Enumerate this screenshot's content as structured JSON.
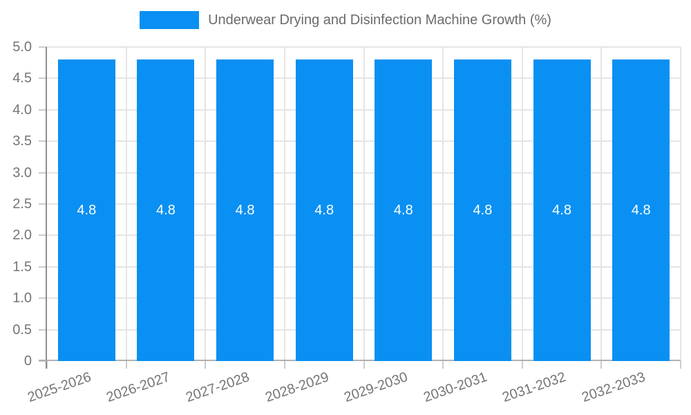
{
  "chart_data": {
    "type": "bar",
    "title": "Underwear Drying and Disinfection Machine Growth (%)",
    "categories": [
      "2025-2026",
      "2026-2027",
      "2027-2028",
      "2028-2029",
      "2029-2030",
      "2030-2031",
      "2031-2032",
      "2032-2033"
    ],
    "values": [
      4.8,
      4.8,
      4.8,
      4.8,
      4.8,
      4.8,
      4.8,
      4.8
    ],
    "value_labels": [
      "4.8",
      "4.8",
      "4.8",
      "4.8",
      "4.8",
      "4.8",
      "4.8",
      "4.8"
    ],
    "xlabel": "",
    "ylabel": "",
    "ylim": [
      0,
      5
    ],
    "ytick_labels": [
      "0",
      "0.5",
      "1.0",
      "1.5",
      "2.0",
      "2.5",
      "3.0",
      "3.5",
      "4.0",
      "4.5",
      "5.0"
    ],
    "grid": "horizontal and vertical light gray",
    "legend_position": "top-center",
    "x_label_rotation_deg": -19,
    "colors": {
      "bar": "#0a90f2",
      "bar_value_text": "#ffffff",
      "tick_text": "#757575",
      "legend_text": "#6b6b6b",
      "grid": "#e5e5e5",
      "y_axis_line": "#8e8e8e",
      "x_axis_line": "#b0b0b0",
      "tick_mark": "#cccccc",
      "background": "#ffffff"
    }
  }
}
